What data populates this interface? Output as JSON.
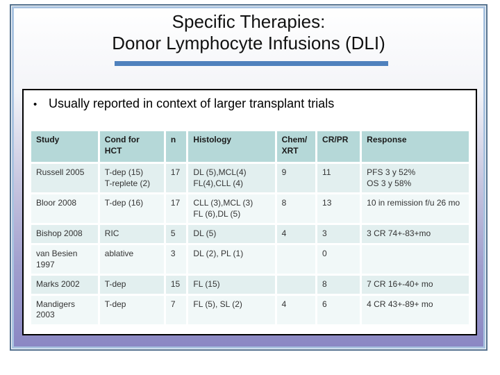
{
  "slide": {
    "title_line1": "Specific Therapies:",
    "title_line2": "Donor Lymphocyte Infusions (DLI)"
  },
  "bullet": {
    "marker": "•",
    "text": "Usually reported in context of larger transplant trials"
  },
  "table": {
    "columns": [
      "Study",
      "Cond for\nHCT",
      "n",
      "Histology",
      "Chem/\nXRT",
      "CR/PR",
      "Response"
    ],
    "rows": [
      [
        "Russell 2005",
        "T-dep (15)\nT-replete (2)",
        "17",
        "DL (5),MCL(4)\nFL(4),CLL (4)",
        "9",
        "11",
        "PFS 3 y 52%\nOS 3 y 58%"
      ],
      [
        "Bloor 2008",
        "T-dep (16)",
        "17",
        "CLL (3),MCL (3)\nFL (6),DL (5)",
        "8",
        "13",
        "10 in remission f/u 26 mo"
      ],
      [
        "Bishop 2008",
        "RIC",
        "5",
        "DL (5)",
        "4",
        "3",
        "3 CR 74+-83+mo"
      ],
      [
        "van Besien\n1997",
        "ablative",
        "3",
        "DL (2), PL (1)",
        "",
        "0",
        ""
      ],
      [
        "Marks 2002",
        "T-dep",
        "15",
        "FL (15)",
        "",
        "8",
        "7 CR 16+-40+ mo"
      ],
      [
        "Mandigers\n2003",
        "T-dep",
        "7",
        "FL (5), SL (2)",
        "4",
        "6",
        "4 CR 43+-89+ mo"
      ]
    ]
  },
  "colors": {
    "title_underline": "#4f81bd",
    "table_header_bg": "#b5d8d8",
    "table_row_odd_bg": "#e2efef",
    "table_row_even_bg": "#f1f8f8",
    "slide_gradient_bottom": "#8a87c3",
    "frame_outer": "#54718e",
    "frame_inner": "#a9c3e0",
    "content_box_border": "#000000"
  }
}
